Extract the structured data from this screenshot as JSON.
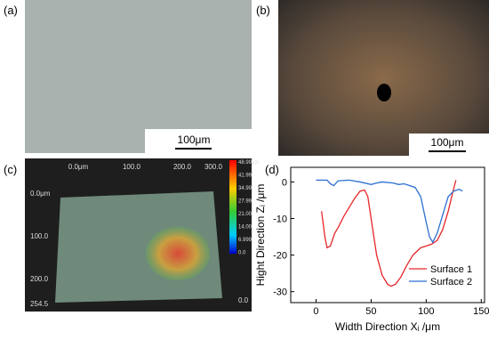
{
  "panels": {
    "a": {
      "label": "(a)",
      "scale": "100μm"
    },
    "b": {
      "label": "(b)",
      "scale": "100μm"
    },
    "c": {
      "label": "(c)",
      "x_labels": [
        "0.0μm",
        "100.0",
        "200.0",
        "300.0"
      ],
      "y_labels": [
        "0.0μm",
        "100.0",
        "200.0",
        "254.5"
      ],
      "colorbar_labels": [
        "48.99μm",
        "41.99",
        "34.99",
        "27.99",
        "21.00",
        "14.00",
        "6.999",
        "0.0"
      ],
      "corner_label": "0.0"
    },
    "d": {
      "label": "(d)"
    }
  },
  "chart_data": {
    "type": "line",
    "x_label": "Width Direction Xᵢ /μm",
    "y_label": "Hight Direction Zᵢ /μm",
    "xlim": [
      -23,
      153
    ],
    "ylim": [
      -33,
      4
    ],
    "xticks": [
      0,
      50,
      100,
      150
    ],
    "yticks": [
      0,
      -10,
      -20,
      -30
    ],
    "legend": "lower right",
    "series": [
      {
        "name": "Surface 1",
        "color": "#e8262a",
        "x": [
          5,
          8,
          10,
          13,
          17,
          20,
          25,
          30,
          35,
          40,
          44,
          47,
          50,
          55,
          60,
          65,
          68,
          72,
          77,
          82,
          88,
          95,
          100,
          105,
          110,
          115,
          120,
          124,
          127
        ],
        "values": [
          -8,
          -15,
          -18,
          -17.5,
          -14,
          -12.5,
          -9.5,
          -7,
          -4.5,
          -2.5,
          -2.2,
          -4,
          -10,
          -20,
          -25.5,
          -28,
          -28.5,
          -28,
          -26,
          -23,
          -20,
          -18,
          -17.5,
          -17,
          -16,
          -13,
          -8,
          -3,
          0.5
        ]
      },
      {
        "name": "Surface 2",
        "color": "#2b6fd1",
        "x": [
          0,
          10,
          13,
          16,
          20,
          30,
          40,
          50,
          55,
          60,
          70,
          75,
          80,
          90,
          95,
          100,
          103,
          106,
          110,
          115,
          120,
          125,
          130,
          133
        ],
        "values": [
          0.5,
          0.5,
          -0.5,
          -1,
          0.3,
          0.5,
          0,
          -0.7,
          -0.3,
          0,
          -0.3,
          -0.7,
          -0.5,
          -1.5,
          -4,
          -11,
          -15,
          -16.5,
          -14,
          -9,
          -4,
          -2.5,
          -2,
          -2.5
        ]
      }
    ]
  }
}
